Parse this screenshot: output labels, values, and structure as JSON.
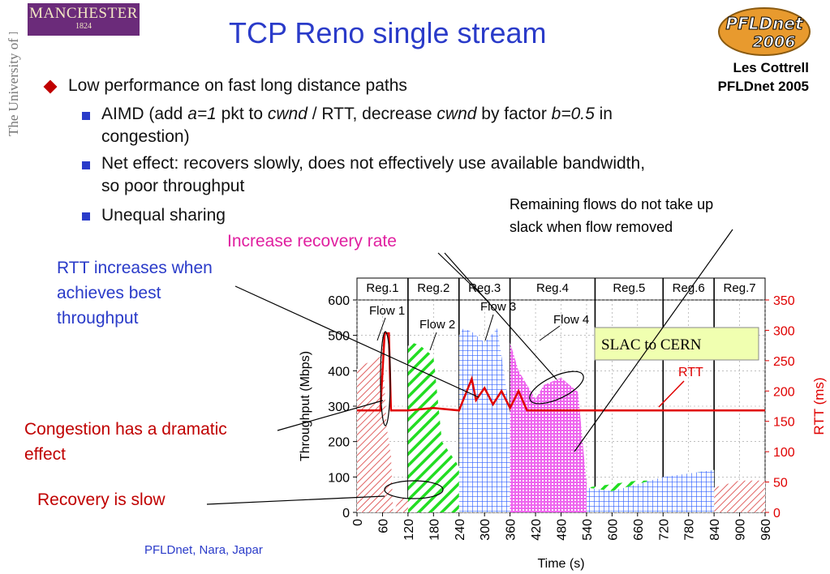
{
  "logo": {
    "name": "MANCHESTER",
    "year": "1824"
  },
  "side_text": "The University of Manchester",
  "title": "TCP Reno single stream",
  "pfld_logo": {
    "line1": "PFLDnet",
    "line2": "2006"
  },
  "author": {
    "name": "Les Cottrell",
    "venue": "PFLDnet 2005"
  },
  "bullets": {
    "main": "Low performance on fast long distance paths",
    "aimd": {
      "p1": "AIMD (add ",
      "a": "a=1",
      "p2": " pkt to ",
      "cwnd1": "cwnd",
      "p3": " / RTT, decrease ",
      "cwnd2": "cwnd",
      "p4": " by factor ",
      "b": "b=0.5",
      "p5": " in",
      "line2": "congestion)"
    },
    "net_effect": {
      "line1": "Net effect: recovers slowly, does not effectively use available bandwidth,",
      "line2": "so poor throughput"
    },
    "unequal": "Unequal sharing"
  },
  "annotations": {
    "remaining": {
      "line1": "Remaining flows do not take up",
      "line2": "slack when flow removed"
    },
    "increase": "Increase recovery rate",
    "rtt_increase": {
      "line1": "RTT increases when",
      "line2": "achieves best",
      "line3": "throughput"
    },
    "congestion": {
      "line1": "Congestion has a dramatic",
      "line2": "effect"
    },
    "recovery": "Recovery is slow"
  },
  "footer": "PFLDnet, Nara, Japar",
  "colors": {
    "title_blue": "#2a3bc9",
    "annotation_red": "#c00000",
    "annotation_pink": "#e020a0",
    "rtt_red": "#e00000",
    "flow1": "#e06060",
    "flow2": "#22dd22",
    "flow3": "#3060ff",
    "flow4": "#ee66ee",
    "label_box": "#f0ffb0"
  },
  "chart_data": {
    "type": "area",
    "xlabel": "Time (s)",
    "ylabel": "Throughput (Mbps)",
    "y2label": "RTT (ms)",
    "xlim": [
      0,
      960
    ],
    "ylim": [
      0,
      600
    ],
    "y2lim": [
      0,
      350
    ],
    "xticks": [
      "0",
      "60",
      "120",
      "180",
      "240",
      "300",
      "360",
      "420",
      "480",
      "540",
      "600",
      "660",
      "720",
      "780",
      "840",
      "900",
      "960"
    ],
    "yticks": [
      "0",
      "100",
      "200",
      "300",
      "400",
      "500",
      "600"
    ],
    "y2ticks": [
      "0",
      "50",
      "100",
      "150",
      "200",
      "250",
      "300",
      "350"
    ],
    "regions": [
      {
        "label": "Reg.1",
        "start": 0,
        "end": 120
      },
      {
        "label": "Reg.2",
        "start": 120,
        "end": 240
      },
      {
        "label": "Reg.3",
        "start": 240,
        "end": 360
      },
      {
        "label": "Reg.4",
        "start": 360,
        "end": 560
      },
      {
        "label": "Reg.5",
        "start": 560,
        "end": 720
      },
      {
        "label": "Reg.6",
        "start": 720,
        "end": 840
      },
      {
        "label": "Reg.7",
        "start": 840,
        "end": 960
      }
    ],
    "flow_labels": [
      "Flow 1",
      "Flow 2",
      "Flow 3",
      "Flow 4"
    ],
    "box_label": "SLAC to CERN",
    "rtt_label": "RTT",
    "series": [
      {
        "name": "Flow 1",
        "x": [
          0,
          20,
          40,
          55,
          60,
          70,
          80,
          85,
          100,
          120,
          180,
          240,
          300,
          360,
          420,
          480,
          540,
          600,
          660,
          720,
          780,
          840,
          900,
          960
        ],
        "y": [
          405,
          420,
          430,
          440,
          460,
          240,
          160,
          0,
          40,
          40,
          30,
          30,
          30,
          40,
          40,
          40,
          40,
          60,
          60,
          60,
          60,
          70,
          90,
          90
        ]
      },
      {
        "name": "Flow 2",
        "x": [
          120,
          130,
          150,
          180,
          200,
          240,
          300,
          360,
          420,
          480,
          540,
          600,
          660,
          720,
          780,
          840
        ],
        "y": [
          470,
          480,
          470,
          440,
          200,
          130,
          80,
          80,
          90,
          80,
          70,
          80,
          90,
          90,
          110,
          120
        ]
      },
      {
        "name": "Flow 3",
        "x": [
          240,
          250,
          270,
          300,
          330,
          360,
          420,
          480,
          540,
          600,
          660,
          720,
          780,
          840
        ],
        "y": [
          500,
          520,
          510,
          480,
          520,
          280,
          260,
          270,
          70,
          60,
          80,
          100,
          110,
          120
        ]
      },
      {
        "name": "Flow 4",
        "x": [
          360,
          380,
          420,
          440,
          480,
          520,
          540
        ],
        "y": [
          480,
          400,
          320,
          360,
          380,
          340,
          80
        ]
      },
      {
        "name": "RTT",
        "x": [
          0,
          55,
          65,
          75,
          80,
          120,
          180,
          240,
          270,
          280,
          300,
          320,
          340,
          360,
          380,
          400,
          420,
          480,
          540,
          600,
          660,
          720,
          780,
          840,
          900,
          960
        ],
        "y": [
          168,
          168,
          295,
          295,
          168,
          168,
          172,
          168,
          220,
          185,
          205,
          178,
          200,
          172,
          200,
          168,
          168,
          168,
          168,
          168,
          168,
          168,
          168,
          168,
          168,
          168
        ]
      }
    ]
  }
}
